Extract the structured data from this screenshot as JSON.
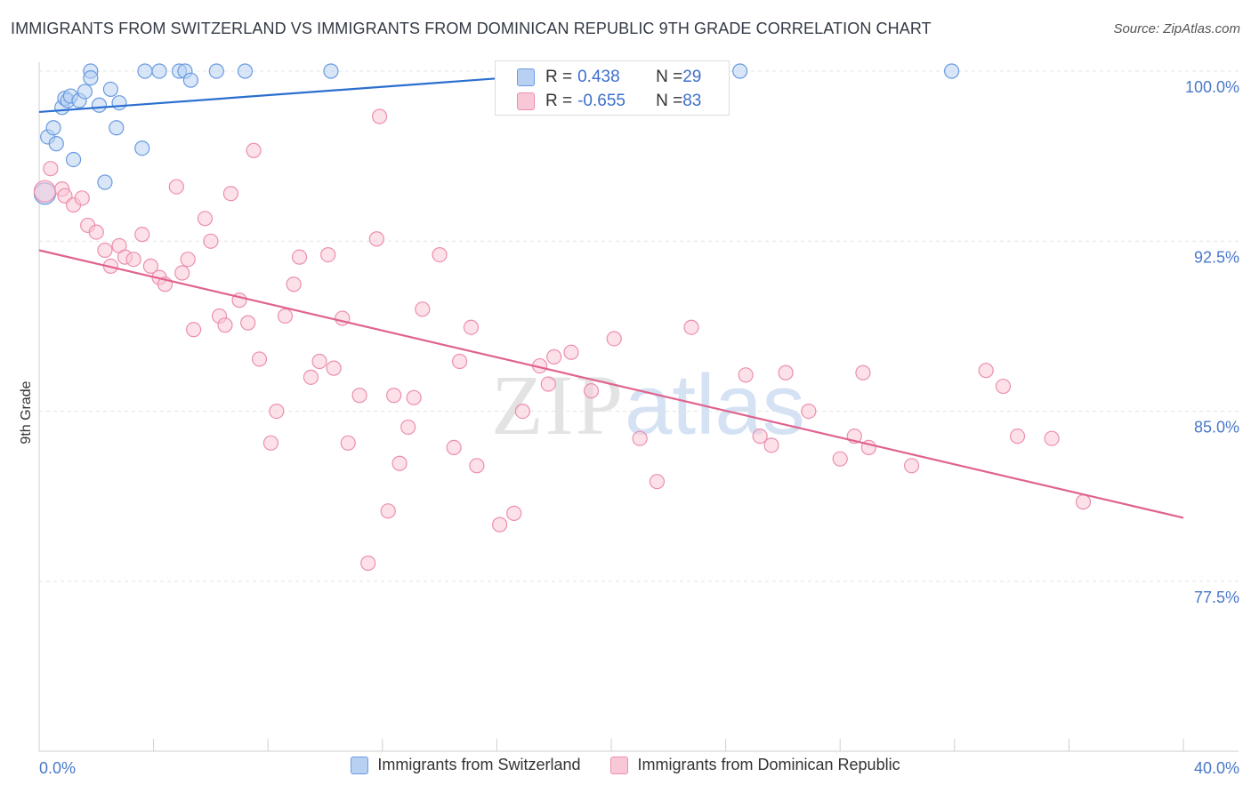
{
  "header": {
    "title": "IMMIGRANTS FROM SWITZERLAND VS IMMIGRANTS FROM DOMINICAN REPUBLIC 9TH GRADE CORRELATION CHART",
    "source": "Source: ZipAtlas.com"
  },
  "watermark": {
    "zip": "ZIP",
    "atlas": "atlas"
  },
  "stats": {
    "rows": [
      {
        "r_label": "R = ",
        "r_value": "0.438",
        "n_label": "N = ",
        "n_value": "29"
      },
      {
        "r_label": "R = ",
        "r_value": "-0.655",
        "n_label": "N = ",
        "n_value": "83"
      }
    ]
  },
  "legend": {
    "items": [
      {
        "label": "Immigrants from Switzerland"
      },
      {
        "label": "Immigrants from Dominican Republic"
      }
    ]
  },
  "colors": {
    "blue_fill": "#b8d1f3",
    "blue_stroke": "#6a9be0",
    "blue_line": "#2a6fcf",
    "pink_fill": "#f9c8d7",
    "pink_stroke": "#ec8fae",
    "pink_line": "#e0638e"
  },
  "chart_data": {
    "type": "scatter",
    "title": "IMMIGRANTS FROM SWITZERLAND VS IMMIGRANTS FROM DOMINICAN REPUBLIC 9TH GRADE CORRELATION CHART",
    "xlabel": "",
    "ylabel": "9th Grade",
    "xlim": [
      0,
      40
    ],
    "ylim": [
      70.0,
      101.0
    ],
    "x_tick_labels": [
      {
        "value": 0,
        "label": "0.0%"
      },
      {
        "value": 40,
        "label": "40.0%"
      }
    ],
    "y_ticks": [
      {
        "value": 100.0,
        "label": "100.0%"
      },
      {
        "value": 92.5,
        "label": "92.5%"
      },
      {
        "value": 85.0,
        "label": "85.0%"
      },
      {
        "value": 77.5,
        "label": "77.5%"
      }
    ],
    "x_minor_ticks": [
      4,
      8,
      12,
      16,
      20,
      24,
      28,
      32,
      36,
      40
    ],
    "grid": true,
    "series": [
      {
        "name": "Immigrants from Switzerland",
        "r": 0.438,
        "n": 29,
        "trend": [
          {
            "x": 0,
            "y": 98.2
          },
          {
            "x": 19.5,
            "y": 100.0
          }
        ],
        "points": [
          {
            "x": 0.2,
            "y": 94.6
          },
          {
            "x": 0.3,
            "y": 97.1
          },
          {
            "x": 0.5,
            "y": 97.5
          },
          {
            "x": 0.6,
            "y": 96.8
          },
          {
            "x": 0.8,
            "y": 98.4
          },
          {
            "x": 0.9,
            "y": 98.8
          },
          {
            "x": 1.0,
            "y": 98.7
          },
          {
            "x": 1.1,
            "y": 98.9
          },
          {
            "x": 1.2,
            "y": 96.1
          },
          {
            "x": 1.4,
            "y": 98.7
          },
          {
            "x": 1.6,
            "y": 99.1
          },
          {
            "x": 1.8,
            "y": 100.0
          },
          {
            "x": 1.8,
            "y": 99.7
          },
          {
            "x": 2.1,
            "y": 98.5
          },
          {
            "x": 2.3,
            "y": 95.1
          },
          {
            "x": 2.5,
            "y": 99.2
          },
          {
            "x": 2.7,
            "y": 97.5
          },
          {
            "x": 2.8,
            "y": 98.6
          },
          {
            "x": 3.6,
            "y": 96.6
          },
          {
            "x": 3.7,
            "y": 100.0
          },
          {
            "x": 4.2,
            "y": 100.0
          },
          {
            "x": 4.9,
            "y": 100.0
          },
          {
            "x": 5.1,
            "y": 100.0
          },
          {
            "x": 5.3,
            "y": 99.6
          },
          {
            "x": 6.2,
            "y": 100.0
          },
          {
            "x": 7.2,
            "y": 100.0
          },
          {
            "x": 10.2,
            "y": 100.0
          },
          {
            "x": 24.5,
            "y": 100.0
          },
          {
            "x": 31.9,
            "y": 100.0
          }
        ]
      },
      {
        "name": "Immigrants from Dominican Republic",
        "r": -0.655,
        "n": 83,
        "trend": [
          {
            "x": 0,
            "y": 92.1
          },
          {
            "x": 40,
            "y": 80.3
          }
        ],
        "points": [
          {
            "x": 0.2,
            "y": 94.7
          },
          {
            "x": 0.4,
            "y": 95.7
          },
          {
            "x": 0.8,
            "y": 94.8
          },
          {
            "x": 0.9,
            "y": 94.5
          },
          {
            "x": 1.2,
            "y": 94.1
          },
          {
            "x": 1.5,
            "y": 94.4
          },
          {
            "x": 1.7,
            "y": 93.2
          },
          {
            "x": 2.0,
            "y": 92.9
          },
          {
            "x": 2.3,
            "y": 92.1
          },
          {
            "x": 2.5,
            "y": 91.4
          },
          {
            "x": 2.8,
            "y": 92.3
          },
          {
            "x": 3.0,
            "y": 91.8
          },
          {
            "x": 3.3,
            "y": 91.7
          },
          {
            "x": 3.6,
            "y": 92.8
          },
          {
            "x": 3.9,
            "y": 91.4
          },
          {
            "x": 4.2,
            "y": 90.9
          },
          {
            "x": 4.4,
            "y": 90.6
          },
          {
            "x": 4.8,
            "y": 94.9
          },
          {
            "x": 5.0,
            "y": 91.1
          },
          {
            "x": 5.2,
            "y": 91.7
          },
          {
            "x": 5.4,
            "y": 88.6
          },
          {
            "x": 5.8,
            "y": 93.5
          },
          {
            "x": 6.0,
            "y": 92.5
          },
          {
            "x": 6.3,
            "y": 89.2
          },
          {
            "x": 6.5,
            "y": 88.8
          },
          {
            "x": 6.7,
            "y": 94.6
          },
          {
            "x": 7.0,
            "y": 89.9
          },
          {
            "x": 7.3,
            "y": 88.9
          },
          {
            "x": 7.5,
            "y": 96.5
          },
          {
            "x": 7.7,
            "y": 87.3
          },
          {
            "x": 8.1,
            "y": 83.6
          },
          {
            "x": 8.3,
            "y": 85.0
          },
          {
            "x": 8.6,
            "y": 89.2
          },
          {
            "x": 8.9,
            "y": 90.6
          },
          {
            "x": 9.1,
            "y": 91.8
          },
          {
            "x": 9.5,
            "y": 86.5
          },
          {
            "x": 9.8,
            "y": 87.2
          },
          {
            "x": 10.1,
            "y": 91.9
          },
          {
            "x": 10.3,
            "y": 86.9
          },
          {
            "x": 10.6,
            "y": 89.1
          },
          {
            "x": 10.8,
            "y": 83.6
          },
          {
            "x": 11.2,
            "y": 85.7
          },
          {
            "x": 11.5,
            "y": 78.3
          },
          {
            "x": 11.8,
            "y": 92.6
          },
          {
            "x": 11.9,
            "y": 98.0
          },
          {
            "x": 12.2,
            "y": 80.6
          },
          {
            "x": 12.4,
            "y": 85.7
          },
          {
            "x": 12.6,
            "y": 82.7
          },
          {
            "x": 12.9,
            "y": 84.3
          },
          {
            "x": 13.1,
            "y": 85.6
          },
          {
            "x": 13.4,
            "y": 89.5
          },
          {
            "x": 14.0,
            "y": 91.9
          },
          {
            "x": 14.5,
            "y": 83.4
          },
          {
            "x": 14.7,
            "y": 87.2
          },
          {
            "x": 15.1,
            "y": 88.7
          },
          {
            "x": 15.3,
            "y": 82.6
          },
          {
            "x": 16.1,
            "y": 80.0
          },
          {
            "x": 16.6,
            "y": 80.5
          },
          {
            "x": 16.9,
            "y": 85.0
          },
          {
            "x": 17.5,
            "y": 87.0
          },
          {
            "x": 17.8,
            "y": 86.2
          },
          {
            "x": 18.0,
            "y": 87.4
          },
          {
            "x": 18.6,
            "y": 87.6
          },
          {
            "x": 19.3,
            "y": 85.9
          },
          {
            "x": 20.1,
            "y": 88.2
          },
          {
            "x": 21.0,
            "y": 83.8
          },
          {
            "x": 21.6,
            "y": 81.9
          },
          {
            "x": 22.8,
            "y": 88.7
          },
          {
            "x": 24.7,
            "y": 86.6
          },
          {
            "x": 25.2,
            "y": 83.9
          },
          {
            "x": 25.6,
            "y": 83.5
          },
          {
            "x": 26.1,
            "y": 86.7
          },
          {
            "x": 26.9,
            "y": 85.0
          },
          {
            "x": 28.0,
            "y": 82.9
          },
          {
            "x": 28.5,
            "y": 83.9
          },
          {
            "x": 28.8,
            "y": 86.7
          },
          {
            "x": 29.0,
            "y": 83.4
          },
          {
            "x": 30.5,
            "y": 82.6
          },
          {
            "x": 33.1,
            "y": 86.8
          },
          {
            "x": 33.7,
            "y": 86.1
          },
          {
            "x": 34.2,
            "y": 83.9
          },
          {
            "x": 35.4,
            "y": 83.8
          },
          {
            "x": 36.5,
            "y": 81.0
          }
        ]
      }
    ]
  }
}
